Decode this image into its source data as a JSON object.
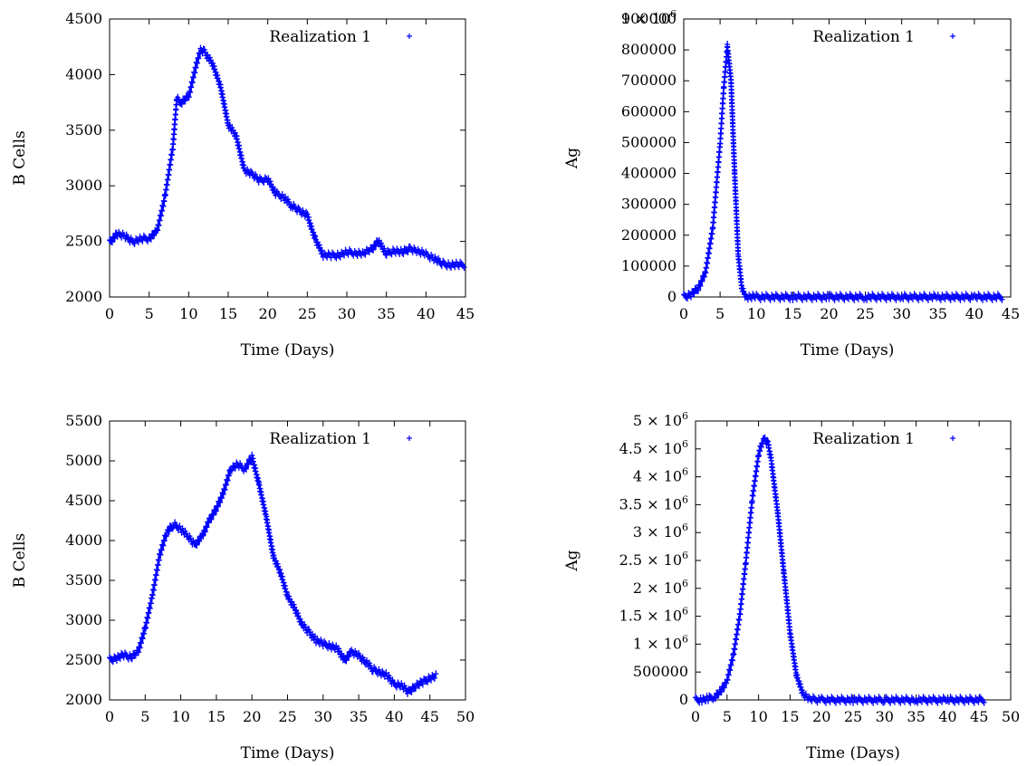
{
  "colors": {
    "series": "#0000ff",
    "axis": "#000000",
    "background": "#ffffff"
  },
  "chart_data": [
    {
      "type": "scatter",
      "xlabel": "Time (Days)",
      "ylabel": "B Cells",
      "xlim": [
        0,
        45
      ],
      "ylim": [
        2000,
        4500
      ],
      "xticks": [
        "0",
        "5",
        "10",
        "15",
        "20",
        "25",
        "30",
        "35",
        "40",
        "45"
      ],
      "yticks": [
        "2000",
        "2500",
        "3000",
        "3500",
        "4000",
        "4500"
      ],
      "legend_position": "top-right",
      "grid": false,
      "series": [
        {
          "name": "Realization 1",
          "marker": "+",
          "x": [
            0,
            1,
            2,
            3,
            4,
            5,
            6,
            7,
            8,
            8.5,
            9,
            10,
            11,
            11.5,
            12,
            13,
            14,
            15,
            16,
            17,
            18,
            19,
            20,
            21,
            22,
            23,
            24,
            25,
            26,
            27,
            28,
            29,
            30,
            31,
            32,
            33,
            34,
            35,
            36,
            37,
            38,
            39,
            40,
            41,
            42,
            43,
            44,
            45
          ],
          "y": [
            2490,
            2570,
            2540,
            2500,
            2520,
            2530,
            2590,
            2900,
            3350,
            3780,
            3750,
            3800,
            4100,
            4220,
            4200,
            4100,
            3900,
            3550,
            3450,
            3150,
            3100,
            3050,
            3060,
            2930,
            2900,
            2820,
            2780,
            2730,
            2520,
            2380,
            2370,
            2380,
            2400,
            2400,
            2390,
            2420,
            2500,
            2390,
            2420,
            2400,
            2440,
            2410,
            2380,
            2350,
            2300,
            2290,
            2290,
            2290
          ]
        }
      ]
    },
    {
      "type": "scatter",
      "xlabel": "Time (Days)",
      "ylabel": "Ag",
      "xlim": [
        0,
        45
      ],
      "ylim": [
        0,
        1000000
      ],
      "xticks": [
        "0",
        "5",
        "10",
        "15",
        "20",
        "25",
        "30",
        "35",
        "40",
        "45"
      ],
      "yticks": [
        "0",
        "100000",
        "200000",
        "300000",
        "400000",
        "500000",
        "600000",
        "700000",
        "800000",
        "900000"
      ],
      "ytop_label": [
        "1 × 10",
        "6"
      ],
      "legend_position": "top-right",
      "grid": false,
      "series": [
        {
          "name": "Realization 1",
          "marker": "+",
          "x": [
            0,
            1,
            2,
            3,
            4,
            5,
            5.5,
            6,
            6.5,
            7,
            7.5,
            8,
            8.5,
            9,
            10,
            15,
            20,
            25,
            30,
            35,
            40,
            44
          ],
          "y": [
            0,
            10000,
            30000,
            90000,
            250000,
            550000,
            750000,
            900000,
            780000,
            450000,
            150000,
            30000,
            5000,
            0,
            0,
            0,
            0,
            0,
            0,
            0,
            0,
            0
          ]
        }
      ]
    },
    {
      "type": "scatter",
      "xlabel": "Time (Days)",
      "ylabel": "B Cells",
      "xlim": [
        0,
        50
      ],
      "ylim": [
        2000,
        5500
      ],
      "xticks": [
        "0",
        "5",
        "10",
        "15",
        "20",
        "25",
        "30",
        "35",
        "40",
        "45",
        "50"
      ],
      "yticks": [
        "2000",
        "2500",
        "3000",
        "3500",
        "4000",
        "4500",
        "5000",
        "5500"
      ],
      "legend_position": "top-right",
      "grid": false,
      "series": [
        {
          "name": "Realization 1",
          "marker": "+",
          "x": [
            0,
            1,
            2,
            3,
            4,
            5,
            6,
            7,
            8,
            9,
            10,
            11,
            12,
            13,
            14,
            15,
            16,
            17,
            18,
            19,
            20,
            21,
            22,
            23,
            24,
            25,
            26,
            27,
            28,
            29,
            30,
            31,
            32,
            33,
            34,
            35,
            36,
            37,
            38,
            39,
            40,
            41,
            42,
            43,
            44,
            45,
            46
          ],
          "y": [
            2500,
            2530,
            2560,
            2540,
            2600,
            2900,
            3300,
            3800,
            4100,
            4200,
            4150,
            4050,
            3950,
            4050,
            4250,
            4400,
            4600,
            4900,
            4950,
            4900,
            5050,
            4700,
            4300,
            3800,
            3600,
            3300,
            3150,
            2950,
            2850,
            2750,
            2700,
            2680,
            2640,
            2500,
            2600,
            2550,
            2480,
            2380,
            2350,
            2300,
            2200,
            2180,
            2100,
            2180,
            2220,
            2280,
            2300
          ]
        }
      ]
    },
    {
      "type": "scatter",
      "xlabel": "Time (Days)",
      "ylabel": "Ag",
      "xlim": [
        0,
        50
      ],
      "ylim": [
        0,
        5000000
      ],
      "xticks": [
        "0",
        "5",
        "10",
        "15",
        "20",
        "25",
        "30",
        "35",
        "40",
        "45",
        "50"
      ],
      "yticks": [
        "0",
        "500000",
        "1 × 10^6",
        "1.5 × 10^6",
        "2 × 10^6",
        "2.5 × 10^6",
        "3 × 10^6",
        "3.5 × 10^6",
        "4 × 10^6",
        "4.5 × 10^6",
        "5 × 10^6"
      ],
      "legend_position": "top-right",
      "grid": false,
      "series": [
        {
          "name": "Realization 1",
          "marker": "+",
          "x": [
            0,
            1,
            2,
            3,
            4,
            5,
            6,
            7,
            8,
            9,
            10,
            10.5,
            11,
            11.5,
            12,
            13,
            14,
            15,
            16,
            17,
            18,
            20,
            25,
            30,
            35,
            40,
            46
          ],
          "y": [
            0,
            5000,
            20000,
            60000,
            150000,
            350000,
            800000,
            1500000,
            2500000,
            3600000,
            4400000,
            4600000,
            4680000,
            4600000,
            4300000,
            3400000,
            2300000,
            1200000,
            450000,
            120000,
            20000,
            0,
            0,
            0,
            0,
            0,
            0
          ]
        }
      ]
    }
  ]
}
